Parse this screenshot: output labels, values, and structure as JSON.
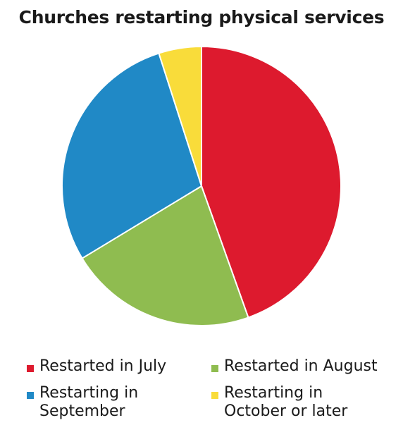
{
  "chart_data": {
    "type": "pie",
    "title": "Churches restarting physical services",
    "series": [
      {
        "name": "Restarted in July",
        "value": 45,
        "color": "#dd1a2e"
      },
      {
        "name": "Restarted in August",
        "value": 22,
        "color": "#8fbc50"
      },
      {
        "name": "Restarting in September",
        "value": 29,
        "color": "#2089c6"
      },
      {
        "name": "Restarting in October or later",
        "value": 5,
        "color": "#f9dc3a"
      }
    ],
    "legend_position": "bottom",
    "start_angle": "top",
    "direction": "clockwise"
  }
}
